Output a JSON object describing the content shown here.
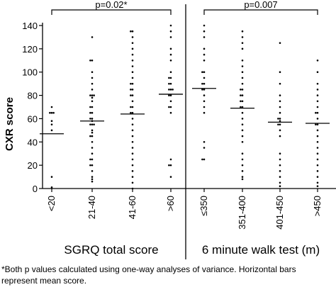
{
  "chart_data": {
    "type": "scatter",
    "ylabel": "CXR score",
    "ylim": [
      0,
      140
    ],
    "yticks": [
      0,
      20,
      40,
      60,
      80,
      100,
      120,
      140
    ],
    "grid": false,
    "dot_color": "#000000",
    "panels": [
      {
        "xlabel": "SGRQ total score",
        "categories": [
          "<20",
          "21-40",
          "41-60",
          ">60"
        ],
        "means": [
          47,
          58,
          64,
          81
        ],
        "p_text": "p=0.02*",
        "bracket": [
          0,
          3
        ],
        "points": [
          [
            70,
            65,
            65,
            65,
            58,
            55,
            50,
            10,
            1
          ],
          [
            130,
            110,
            110,
            100,
            95,
            90,
            85,
            80,
            80,
            80,
            78,
            75,
            70,
            70,
            65,
            65,
            60,
            60,
            58,
            55,
            55,
            55,
            50,
            48,
            45,
            45,
            40,
            35,
            30,
            25,
            25,
            20,
            20,
            15,
            10,
            8,
            6
          ],
          [
            135,
            135,
            130,
            125,
            120,
            115,
            110,
            105,
            100,
            95,
            90,
            90,
            85,
            85,
            80,
            80,
            75,
            70,
            70,
            65,
            65,
            60,
            55,
            50,
            45,
            40,
            35,
            30,
            25,
            20,
            15,
            10,
            5,
            0
          ],
          [
            140,
            135,
            130,
            120,
            115,
            110,
            100,
            95,
            95,
            90,
            90,
            85,
            85,
            85,
            80,
            80,
            75,
            70,
            70,
            65,
            25,
            20,
            20,
            10
          ]
        ]
      },
      {
        "xlabel": "6 minute walk test (m)",
        "categories": [
          "≤350",
          "351-400",
          "401-450",
          ">450"
        ],
        "means": [
          86,
          69,
          57,
          56
        ],
        "p_text": "p=0.007",
        "bracket": [
          0,
          3
        ],
        "points": [
          [
            140,
            135,
            130,
            120,
            115,
            110,
            100,
            100,
            95,
            90,
            90,
            85,
            85,
            80,
            75,
            70,
            65,
            40,
            35,
            25,
            25
          ],
          [
            135,
            130,
            125,
            120,
            110,
            105,
            100,
            95,
            90,
            85,
            85,
            80,
            80,
            75,
            75,
            70,
            70,
            65,
            60,
            55,
            50,
            45,
            40,
            30,
            25,
            20,
            15,
            10,
            8
          ],
          [
            125,
            100,
            90,
            80,
            75,
            70,
            65,
            60,
            60,
            58,
            55,
            55,
            50,
            45,
            30,
            25,
            20,
            15,
            10,
            5,
            2
          ],
          [
            110,
            100,
            90,
            85,
            80,
            75,
            70,
            65,
            65,
            60,
            55,
            55,
            50,
            45,
            40,
            35,
            30,
            25,
            20,
            15,
            10,
            5,
            2
          ]
        ]
      }
    ]
  },
  "footnote": {
    "line1": "*Both p values calculated using one-way analyses of variance. Horizontal bars",
    "line2": "represent mean score."
  }
}
